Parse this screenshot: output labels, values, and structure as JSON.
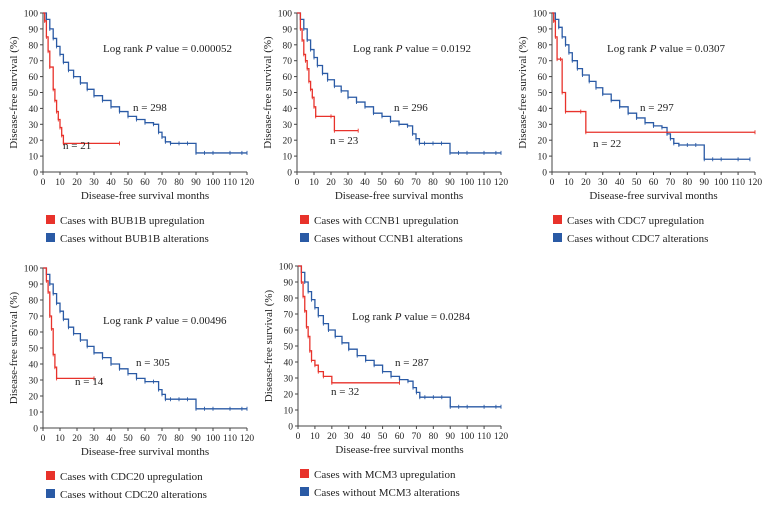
{
  "colors": {
    "upregulation": "#e8322b",
    "without": "#2a5aa5",
    "axis": "#444444"
  },
  "chart_data": [
    {
      "type": "line",
      "gene": "BUB1B",
      "title": "",
      "xlabel": "Disease-free survival months",
      "ylabel": "Disease-free survival (%)",
      "xlim": [
        0,
        120
      ],
      "ylim": [
        0,
        100
      ],
      "xticks": [
        0,
        10,
        20,
        30,
        40,
        50,
        60,
        70,
        80,
        90,
        100,
        110,
        120
      ],
      "yticks": [
        0,
        10,
        20,
        30,
        40,
        50,
        60,
        70,
        80,
        90,
        100
      ],
      "log_rank_prefix": "Log rank ",
      "p_letter": "P",
      "p_text": " value = 0.000052",
      "series": [
        {
          "name": "Cases with BUB1B upregulation",
          "n_label": "n = 21",
          "x": [
            0,
            1,
            2,
            3,
            4,
            6,
            7,
            8,
            9,
            10,
            11,
            12,
            45
          ],
          "y": [
            100,
            95,
            85,
            76,
            66,
            52,
            45,
            38,
            33,
            28,
            23,
            18,
            18
          ]
        },
        {
          "name": "Cases without BUB1B alterations",
          "n_label": "n = 298",
          "x": [
            0,
            2,
            4,
            6,
            8,
            10,
            12,
            15,
            18,
            22,
            26,
            30,
            35,
            40,
            45,
            50,
            55,
            60,
            65,
            68,
            70,
            72,
            75,
            80,
            85,
            90,
            95,
            100,
            110,
            117,
            120
          ],
          "y": [
            100,
            96,
            90,
            84,
            79,
            74,
            69,
            64,
            60,
            56,
            52,
            48,
            45,
            41,
            38,
            35,
            33,
            31,
            30,
            25,
            22,
            19,
            18,
            18,
            18,
            12,
            12,
            12,
            12,
            12,
            12
          ]
        }
      ]
    },
    {
      "type": "line",
      "gene": "CCNB1",
      "title": "",
      "xlabel": "Disease-free survival months",
      "ylabel": "Disease-free survival (%)",
      "xlim": [
        0,
        120
      ],
      "ylim": [
        0,
        100
      ],
      "xticks": [
        0,
        10,
        20,
        30,
        40,
        50,
        60,
        70,
        80,
        90,
        100,
        110,
        120
      ],
      "yticks": [
        0,
        10,
        20,
        30,
        40,
        50,
        60,
        70,
        80,
        90,
        100
      ],
      "log_rank_prefix": "Log rank ",
      "p_letter": "P",
      "p_text": " value = 0.0192",
      "series": [
        {
          "name": "Cases with CCNB1 upregulation",
          "n_label": "n = 23",
          "x": [
            0,
            2,
            3,
            4,
            5,
            6,
            7,
            8,
            9,
            10,
            11,
            20,
            22,
            36
          ],
          "y": [
            100,
            90,
            83,
            74,
            70,
            65,
            57,
            52,
            47,
            41,
            35,
            35,
            26,
            26
          ]
        },
        {
          "name": "Cases without CCNB1 alterations",
          "n_label": "n = 296",
          "x": [
            0,
            2,
            4,
            6,
            8,
            10,
            12,
            15,
            18,
            22,
            26,
            30,
            35,
            40,
            45,
            50,
            55,
            60,
            65,
            68,
            70,
            72,
            75,
            80,
            85,
            90,
            95,
            100,
            110,
            117,
            120
          ],
          "y": [
            100,
            96,
            90,
            83,
            77,
            72,
            67,
            62,
            58,
            54,
            51,
            47,
            44,
            41,
            37,
            35,
            32,
            30,
            29,
            24,
            21,
            18,
            18,
            18,
            18,
            12,
            12,
            12,
            12,
            12,
            12
          ]
        }
      ]
    },
    {
      "type": "line",
      "gene": "CDC7",
      "title": "",
      "xlabel": "Disease-free survival months",
      "ylabel": "Disease-free survival (%)",
      "xlim": [
        0,
        120
      ],
      "ylim": [
        0,
        100
      ],
      "xticks": [
        0,
        10,
        20,
        30,
        40,
        50,
        60,
        70,
        80,
        90,
        100,
        110,
        120
      ],
      "yticks": [
        0,
        10,
        20,
        30,
        40,
        50,
        60,
        70,
        80,
        90,
        100
      ],
      "log_rank_prefix": "Log rank ",
      "p_letter": "P",
      "p_text": " value = 0.0307",
      "series": [
        {
          "name": "Cases with CDC7 upregulation",
          "n_label": "n = 22",
          "x": [
            0,
            1,
            2,
            3,
            5,
            6,
            8,
            17,
            20,
            120
          ],
          "y": [
            100,
            95,
            85,
            71,
            71,
            50,
            38,
            38,
            25,
            25
          ]
        },
        {
          "name": "Cases without CDC7 alterations",
          "n_label": "n = 297",
          "x": [
            0,
            2,
            4,
            6,
            8,
            10,
            12,
            15,
            18,
            22,
            26,
            30,
            35,
            40,
            45,
            50,
            55,
            60,
            65,
            68,
            70,
            72,
            75,
            80,
            85,
            90,
            95,
            100,
            110,
            117
          ],
          "y": [
            100,
            96,
            91,
            85,
            80,
            75,
            70,
            65,
            61,
            57,
            53,
            49,
            45,
            41,
            37,
            34,
            31,
            29,
            28,
            24,
            21,
            18,
            17,
            17,
            17,
            8,
            8,
            8,
            8,
            8
          ]
        }
      ]
    },
    {
      "type": "line",
      "gene": "CDC20",
      "title": "",
      "xlabel": "Disease-free survival months",
      "ylabel": "Disease-free survival (%)",
      "xlim": [
        0,
        120
      ],
      "ylim": [
        0,
        100
      ],
      "xticks": [
        0,
        10,
        20,
        30,
        40,
        50,
        60,
        70,
        80,
        90,
        100,
        110,
        120
      ],
      "yticks": [
        0,
        10,
        20,
        30,
        40,
        50,
        60,
        70,
        80,
        90,
        100
      ],
      "log_rank_prefix": "Log rank ",
      "p_letter": "P",
      "p_text": " value = 0.00496",
      "series": [
        {
          "name": "Cases with CDC20 upregulation",
          "n_label": "n = 14",
          "x": [
            0,
            2,
            3,
            4,
            5,
            6,
            7,
            8,
            30
          ],
          "y": [
            100,
            92,
            85,
            70,
            62,
            46,
            38,
            31,
            31
          ]
        },
        {
          "name": "Cases without CDC20 alterations",
          "n_label": "n = 305",
          "x": [
            0,
            2,
            4,
            6,
            8,
            10,
            12,
            15,
            18,
            22,
            26,
            30,
            35,
            40,
            45,
            50,
            55,
            60,
            65,
            68,
            70,
            72,
            75,
            80,
            85,
            90,
            95,
            100,
            110,
            117,
            120
          ],
          "y": [
            100,
            96,
            90,
            84,
            78,
            73,
            68,
            63,
            59,
            55,
            51,
            47,
            44,
            40,
            37,
            34,
            31,
            29,
            29,
            24,
            21,
            18,
            18,
            18,
            18,
            12,
            12,
            12,
            12,
            12,
            12
          ]
        }
      ]
    },
    {
      "type": "line",
      "gene": "MCM3",
      "title": "",
      "xlabel": "Disease-free survival months",
      "ylabel": "Disease-free survival (%)",
      "xlim": [
        0,
        120
      ],
      "ylim": [
        0,
        100
      ],
      "xticks": [
        0,
        10,
        20,
        30,
        40,
        50,
        60,
        70,
        80,
        90,
        100,
        110,
        120
      ],
      "yticks": [
        0,
        10,
        20,
        30,
        40,
        50,
        60,
        70,
        80,
        90,
        100
      ],
      "log_rank_prefix": "Log rank ",
      "p_letter": "P",
      "p_text": " value = 0.0284",
      "series": [
        {
          "name": "Cases with MCM3 upregulation",
          "n_label": "n = 32",
          "x": [
            0,
            2,
            3,
            4,
            5,
            6,
            7,
            8,
            10,
            12,
            15,
            20,
            60
          ],
          "y": [
            100,
            90,
            81,
            72,
            62,
            56,
            47,
            41,
            38,
            34,
            31,
            27,
            27
          ]
        },
        {
          "name": "Cases without MCM3 alterations",
          "n_label": "n = 287",
          "x": [
            0,
            2,
            4,
            6,
            8,
            10,
            12,
            15,
            18,
            22,
            26,
            30,
            35,
            40,
            45,
            50,
            55,
            60,
            65,
            68,
            70,
            72,
            75,
            80,
            85,
            90,
            95,
            100,
            110,
            117,
            120
          ],
          "y": [
            100,
            96,
            90,
            84,
            79,
            74,
            69,
            64,
            60,
            56,
            52,
            48,
            44,
            41,
            38,
            34,
            31,
            29,
            28,
            24,
            21,
            18,
            18,
            18,
            18,
            12,
            12,
            12,
            12,
            12,
            12
          ]
        }
      ]
    }
  ]
}
